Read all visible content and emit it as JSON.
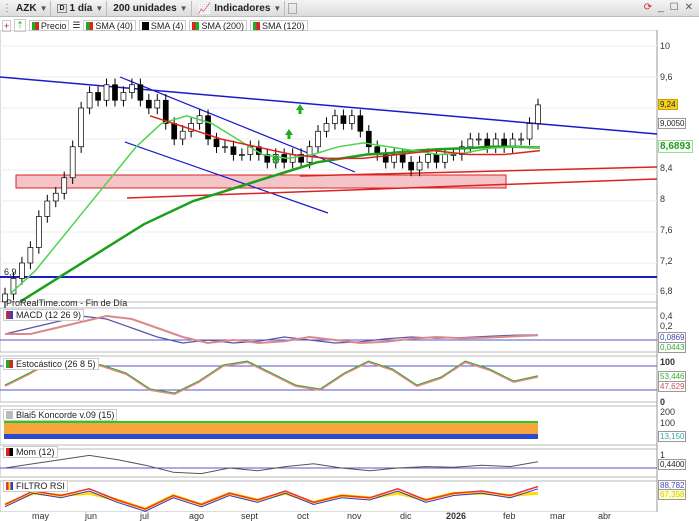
{
  "toolbar": {
    "symbol": "AZK",
    "period": "1 día",
    "units": "200 unidades",
    "indicators": "Indicadores"
  },
  "legend": {
    "items": [
      {
        "label": "Precio",
        "color": "#2a8a2a"
      },
      {
        "label": "SMA (40)",
        "color": "#2eb82e"
      },
      {
        "label": "SMA (4)",
        "color": "#000000"
      },
      {
        "label": "SMA (200)",
        "color": "#22aa22"
      },
      {
        "label": "SMA (120)",
        "color": "#dd1111"
      }
    ]
  },
  "watermark": "ProRealTime.com - Fin de Día",
  "price_axis": {
    "ticks": [
      "10",
      "9,6",
      "9,2",
      "8,4",
      "8",
      "7,6",
      "7,2",
      "6,8"
    ],
    "last": "9,24",
    "line_value": "9,0050",
    "sma_value": "8,6893",
    "left_label": "6,9"
  },
  "panels": {
    "macd": {
      "label": "MACD (12 26 9)",
      "ticks": [
        "0,4",
        "0,2"
      ],
      "values": [
        "0,0869",
        "0,0443"
      ]
    },
    "stoch": {
      "label": "Estocástico (26 8 5)",
      "ticks": [
        "100",
        "0"
      ],
      "values": [
        "53,446",
        "47,629"
      ]
    },
    "koncorde": {
      "label": "Blai5 Koncorde v.09 (15)",
      "ticks": [
        "200",
        "100"
      ],
      "values": [
        "13,150"
      ]
    },
    "mom": {
      "label": "Mom (12)",
      "ticks": [
        "1"
      ],
      "values": [
        "0,4400"
      ]
    },
    "rsi": {
      "label": "FILTRO RSI",
      "values": [
        "88,782",
        "67,358"
      ]
    }
  },
  "months": [
    "may",
    "jun",
    "jul",
    "ago",
    "sept",
    "oct",
    "nov",
    "dic",
    "2026",
    "feb",
    "mar",
    "abr"
  ],
  "chart_data": {
    "type": "candlestick",
    "ylim": [
      6.7,
      10.2
    ],
    "closes": [
      6.8,
      7.0,
      7.2,
      7.4,
      7.8,
      8.0,
      8.1,
      8.3,
      8.7,
      9.2,
      9.4,
      9.3,
      9.5,
      9.3,
      9.4,
      9.5,
      9.3,
      9.2,
      9.3,
      9.0,
      8.8,
      8.9,
      9.0,
      9.1,
      8.8,
      8.7,
      8.7,
      8.6,
      8.6,
      8.7,
      8.6,
      8.5,
      8.6,
      8.5,
      8.6,
      8.5,
      8.7,
      8.9,
      9.0,
      9.1,
      9.0,
      9.1,
      8.9,
      8.7,
      8.6,
      8.5,
      8.6,
      8.5,
      8.4,
      8.5,
      8.6,
      8.5,
      8.6,
      8.6,
      8.7,
      8.8,
      8.8,
      8.7,
      8.8,
      8.7,
      8.8,
      8.8,
      9.0,
      9.24
    ],
    "sma40": [
      6.8,
      7.1,
      7.5,
      7.9,
      8.3,
      8.7,
      9.0,
      9.1,
      9.0,
      8.8,
      8.6,
      8.55,
      8.6,
      8.7,
      8.75,
      8.7,
      8.65,
      8.6,
      8.62,
      8.68,
      8.7,
      8.69
    ],
    "sma200": [
      6.7,
      6.9,
      7.1,
      7.3,
      7.5,
      7.7,
      7.85,
      8.0,
      8.1,
      8.2,
      8.3,
      8.4,
      8.5,
      8.55,
      8.6,
      8.62,
      8.65,
      8.67,
      8.68,
      8.7,
      8.7,
      8.69
    ],
    "sma120": [
      9.1,
      8.95,
      8.8,
      8.7,
      8.6,
      8.55,
      8.55,
      8.6,
      8.65,
      8.6,
      8.6,
      8.65
    ],
    "macd": [
      0.1,
      0.2,
      0.3,
      0.4,
      0.35,
      0.2,
      0.05,
      -0.05,
      0.0,
      -0.05,
      -0.02,
      0.05,
      0.0,
      -0.05,
      -0.03,
      0.02,
      0.05,
      0.03,
      0.04,
      0.06,
      0.08,
      0.087
    ],
    "stoch": [
      30,
      60,
      95,
      90,
      80,
      60,
      20,
      10,
      40,
      80,
      90,
      60,
      30,
      20,
      60,
      90,
      70,
      30,
      50,
      90,
      70,
      40,
      53
    ],
    "momentum": [
      0.0,
      0.3,
      0.6,
      0.9,
      0.6,
      0.2,
      -0.3,
      -0.4,
      0.0,
      -0.2,
      0.1,
      0.3,
      0.0,
      -0.2,
      0.0,
      0.1,
      0.05,
      0.2,
      0.1,
      0.44
    ],
    "rsi": [
      50,
      80,
      70,
      85,
      60,
      40,
      70,
      50,
      75,
      60,
      80,
      55,
      70,
      65,
      85,
      60,
      75,
      80,
      70,
      90
    ]
  }
}
